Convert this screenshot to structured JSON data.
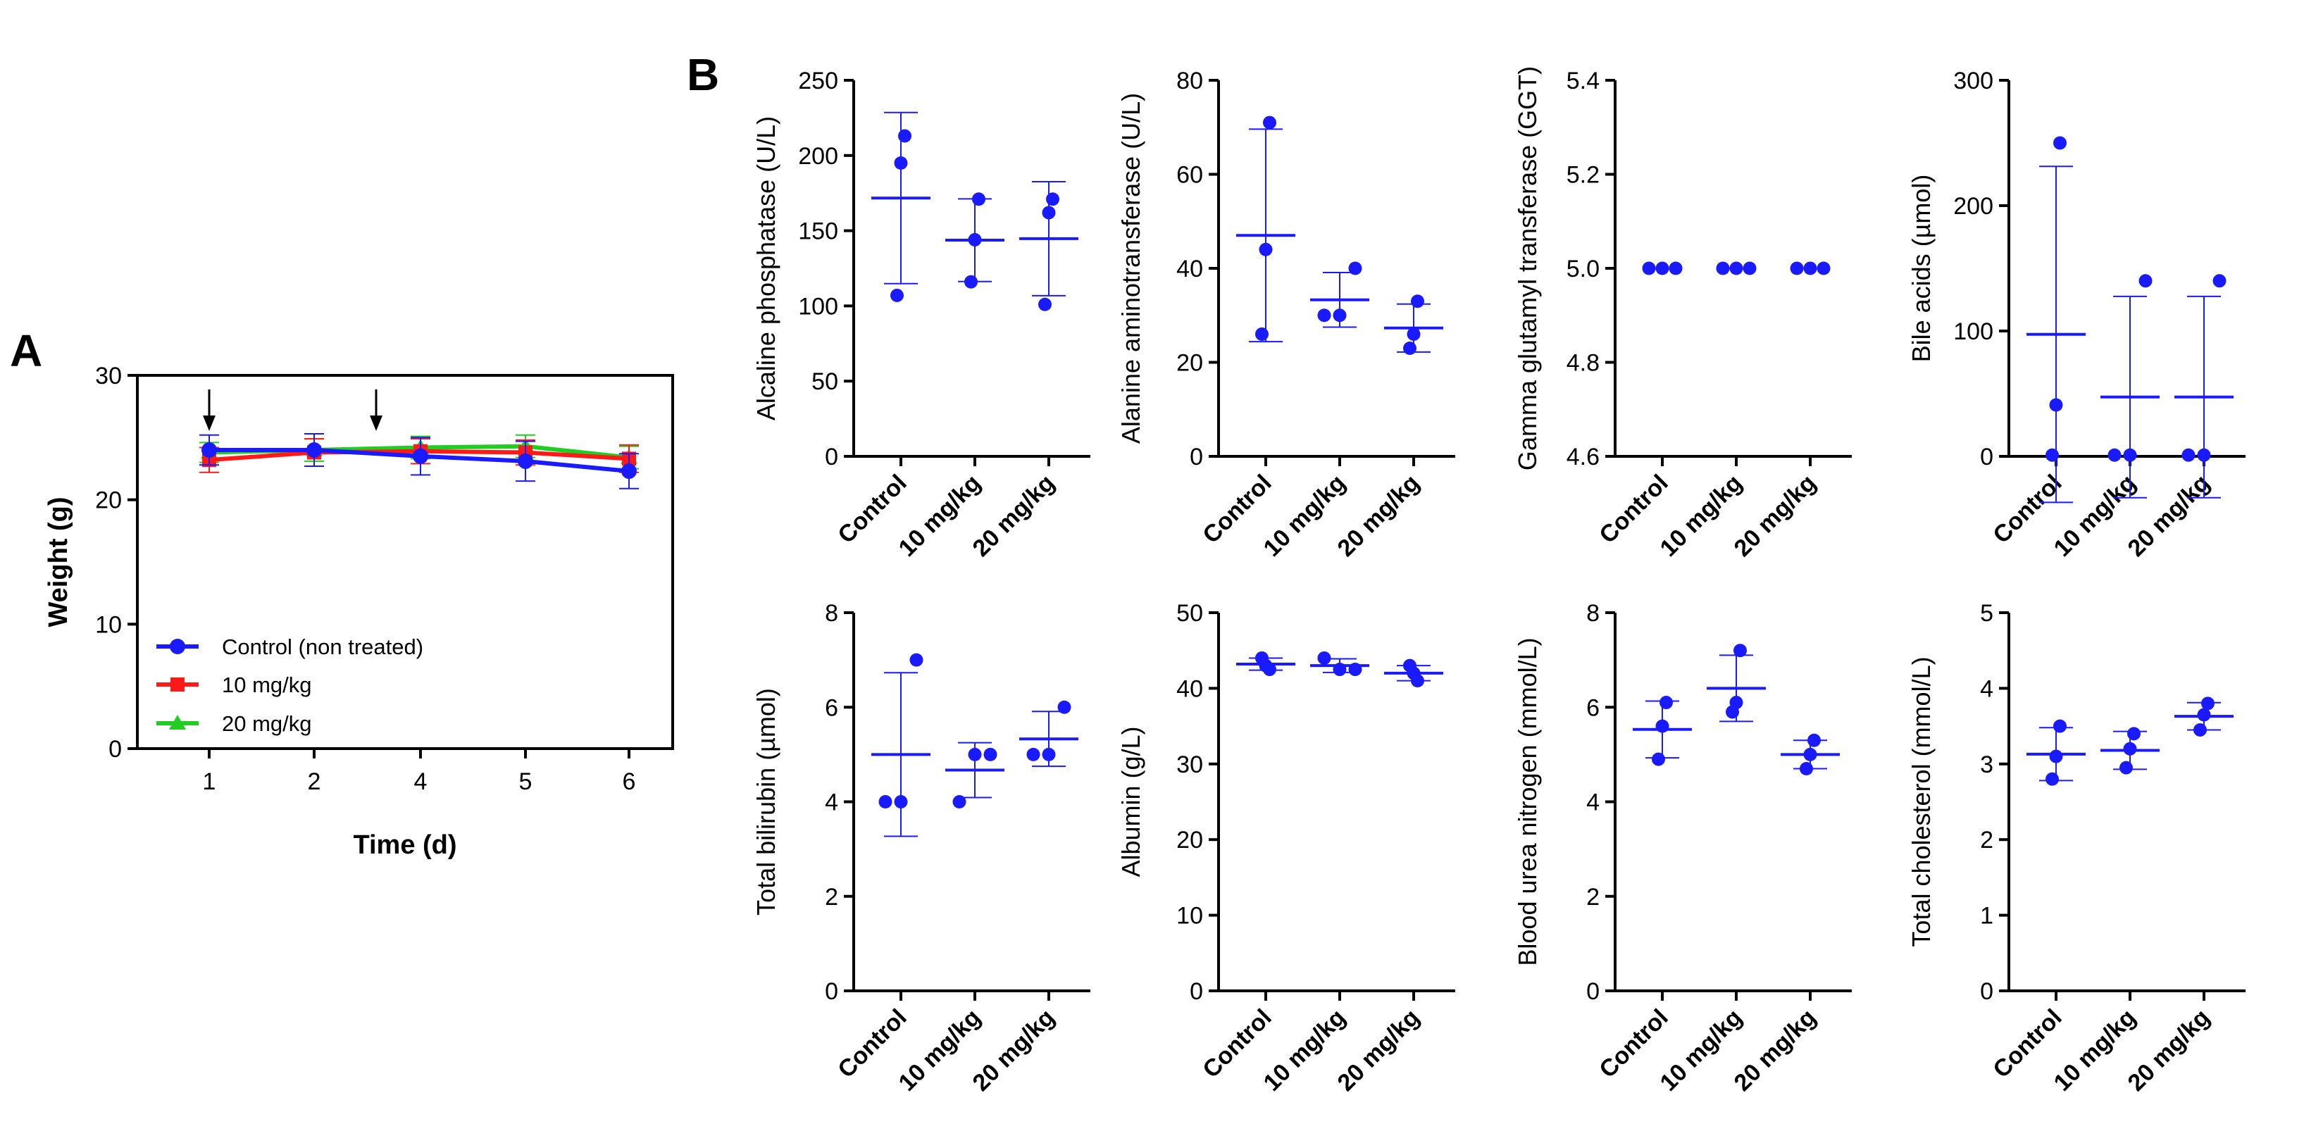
{
  "panels": {
    "a_letter": "A",
    "b_letter": "B"
  },
  "colors": {
    "blue": "#1a1aff",
    "red": "#ff1a1a",
    "green": "#22cc22",
    "axis": "#000000"
  },
  "chart_data": [
    {
      "id": "weight",
      "type": "line",
      "xlabel": "Time (d)",
      "ylabel": "Weight (g)",
      "ylim": [
        0,
        30
      ],
      "yticks": [
        0,
        10,
        20,
        30
      ],
      "x_tick_labels": [
        "1",
        "2",
        "4",
        "5",
        "6"
      ],
      "arrow_days": [
        "1",
        "3"
      ],
      "legend_position": "bottom-left",
      "series": [
        {
          "name": "Control (non treated)",
          "color": "#1a1aff",
          "marker": "circle",
          "values": [
            24.0,
            24.0,
            23.5,
            23.1,
            22.3
          ],
          "errors": [
            1.2,
            1.3,
            1.5,
            1.6,
            1.4
          ]
        },
        {
          "name": "10 mg/kg",
          "color": "#ff1a1a",
          "marker": "square",
          "values": [
            23.2,
            23.8,
            23.9,
            23.8,
            23.3
          ],
          "errors": [
            1.0,
            1.1,
            1.0,
            1.0,
            1.1
          ]
        },
        {
          "name": "20 mg/kg",
          "color": "#22cc22",
          "marker": "triangle",
          "values": [
            23.8,
            24.0,
            24.2,
            24.3,
            23.4
          ],
          "errors": [
            0.8,
            0.9,
            0.9,
            0.9,
            0.9
          ]
        }
      ]
    },
    {
      "id": "alp",
      "type": "scatter",
      "ylabel": "Alcaline phosphatase (U/L)",
      "ylim": [
        0,
        250
      ],
      "yticks": [
        0,
        50,
        100,
        150,
        200,
        250
      ],
      "categories": [
        "Control",
        "10 mg/kg",
        "20 mg/kg"
      ],
      "points": [
        [
          107,
          195,
          213
        ],
        [
          116,
          144,
          171
        ],
        [
          101,
          162,
          171
        ]
      ],
      "means": [
        171.7,
        143.7,
        144.7
      ],
      "errors": [
        56.9,
        27.5,
        37.9
      ]
    },
    {
      "id": "alt",
      "type": "scatter",
      "ylabel": "Alanine aminotransferase (U/L)",
      "ylim": [
        0,
        80
      ],
      "yticks": [
        0,
        20,
        40,
        60,
        80
      ],
      "categories": [
        "Control",
        "10 mg/kg",
        "20 mg/kg"
      ],
      "points": [
        [
          26,
          44,
          71
        ],
        [
          30,
          30,
          40
        ],
        [
          23,
          26,
          33
        ]
      ],
      "means": [
        47,
        33.3,
        27.3
      ],
      "errors": [
        22.6,
        5.8,
        5.1
      ]
    },
    {
      "id": "ggt",
      "type": "scatter",
      "ylabel": "Gamma glutamyl transferase (GGT)",
      "ylim": [
        4.6,
        5.4
      ],
      "yticks": [
        4.6,
        4.8,
        5.0,
        5.2,
        5.4
      ],
      "tick_decimals": 1,
      "categories": [
        "Control",
        "10 mg/kg",
        "20 mg/kg"
      ],
      "points": [
        [
          5,
          5,
          5
        ],
        [
          5,
          5,
          5
        ],
        [
          5,
          5,
          5
        ]
      ],
      "means": [
        5,
        5,
        5
      ],
      "errors": [
        0,
        0,
        0
      ]
    },
    {
      "id": "bile",
      "type": "scatter",
      "ylabel": "Bile acids (µmol)",
      "ylim": [
        0,
        300
      ],
      "yticks": [
        0,
        100,
        200,
        300
      ],
      "categories": [
        "Control",
        "10 mg/kg",
        "20 mg/kg"
      ],
      "points": [
        [
          1,
          41,
          250
        ],
        [
          1,
          1,
          140
        ],
        [
          1,
          1,
          140
        ]
      ],
      "means": [
        97.3,
        47.3,
        47.3
      ],
      "errors": [
        134,
        80.3,
        80.3
      ]
    },
    {
      "id": "bilirubin",
      "type": "scatter",
      "ylabel": "Total bilirubin (µmol)",
      "ylim": [
        0,
        8
      ],
      "yticks": [
        0,
        2,
        4,
        6,
        8
      ],
      "categories": [
        "Control",
        "10 mg/kg",
        "20 mg/kg"
      ],
      "points": [
        [
          4,
          4,
          7
        ],
        [
          4,
          5,
          5
        ],
        [
          5,
          5,
          6
        ]
      ],
      "means": [
        5,
        4.67,
        5.33
      ],
      "errors": [
        1.73,
        0.58,
        0.58
      ]
    },
    {
      "id": "albumin",
      "type": "scatter",
      "ylabel": "Albumin (g/L)",
      "ylim": [
        0,
        50
      ],
      "yticks": [
        0,
        10,
        20,
        30,
        40,
        50
      ],
      "categories": [
        "Control",
        "10 mg/kg",
        "20 mg/kg"
      ],
      "points": [
        [
          44,
          43,
          42.5
        ],
        [
          44,
          42.5,
          42.5
        ],
        [
          43,
          42,
          41
        ]
      ],
      "means": [
        43.2,
        43,
        42
      ],
      "errors": [
        0.8,
        0.9,
        1.0
      ]
    },
    {
      "id": "bun",
      "type": "scatter",
      "ylabel": "Blood urea nitrogen (mmol/L)",
      "ylim": [
        0,
        8
      ],
      "yticks": [
        0,
        2,
        4,
        6,
        8
      ],
      "categories": [
        "Control",
        "10 mg/kg",
        "20 mg/kg"
      ],
      "points": [
        [
          4.9,
          5.6,
          6.1
        ],
        [
          5.9,
          6.1,
          7.2
        ],
        [
          4.7,
          5.0,
          5.3
        ]
      ],
      "means": [
        5.53,
        6.4,
        5.0
      ],
      "errors": [
        0.6,
        0.7,
        0.3
      ]
    },
    {
      "id": "cholesterol",
      "type": "scatter",
      "ylabel": "Total cholesterol (mmol/L)",
      "ylim": [
        0,
        5
      ],
      "yticks": [
        0,
        1,
        2,
        3,
        4,
        5
      ],
      "categories": [
        "Control",
        "10 mg/kg",
        "20 mg/kg"
      ],
      "points": [
        [
          2.8,
          3.1,
          3.5
        ],
        [
          2.95,
          3.2,
          3.4
        ],
        [
          3.45,
          3.65,
          3.8
        ]
      ],
      "means": [
        3.13,
        3.18,
        3.63
      ],
      "errors": [
        0.35,
        0.25,
        0.18
      ]
    }
  ]
}
